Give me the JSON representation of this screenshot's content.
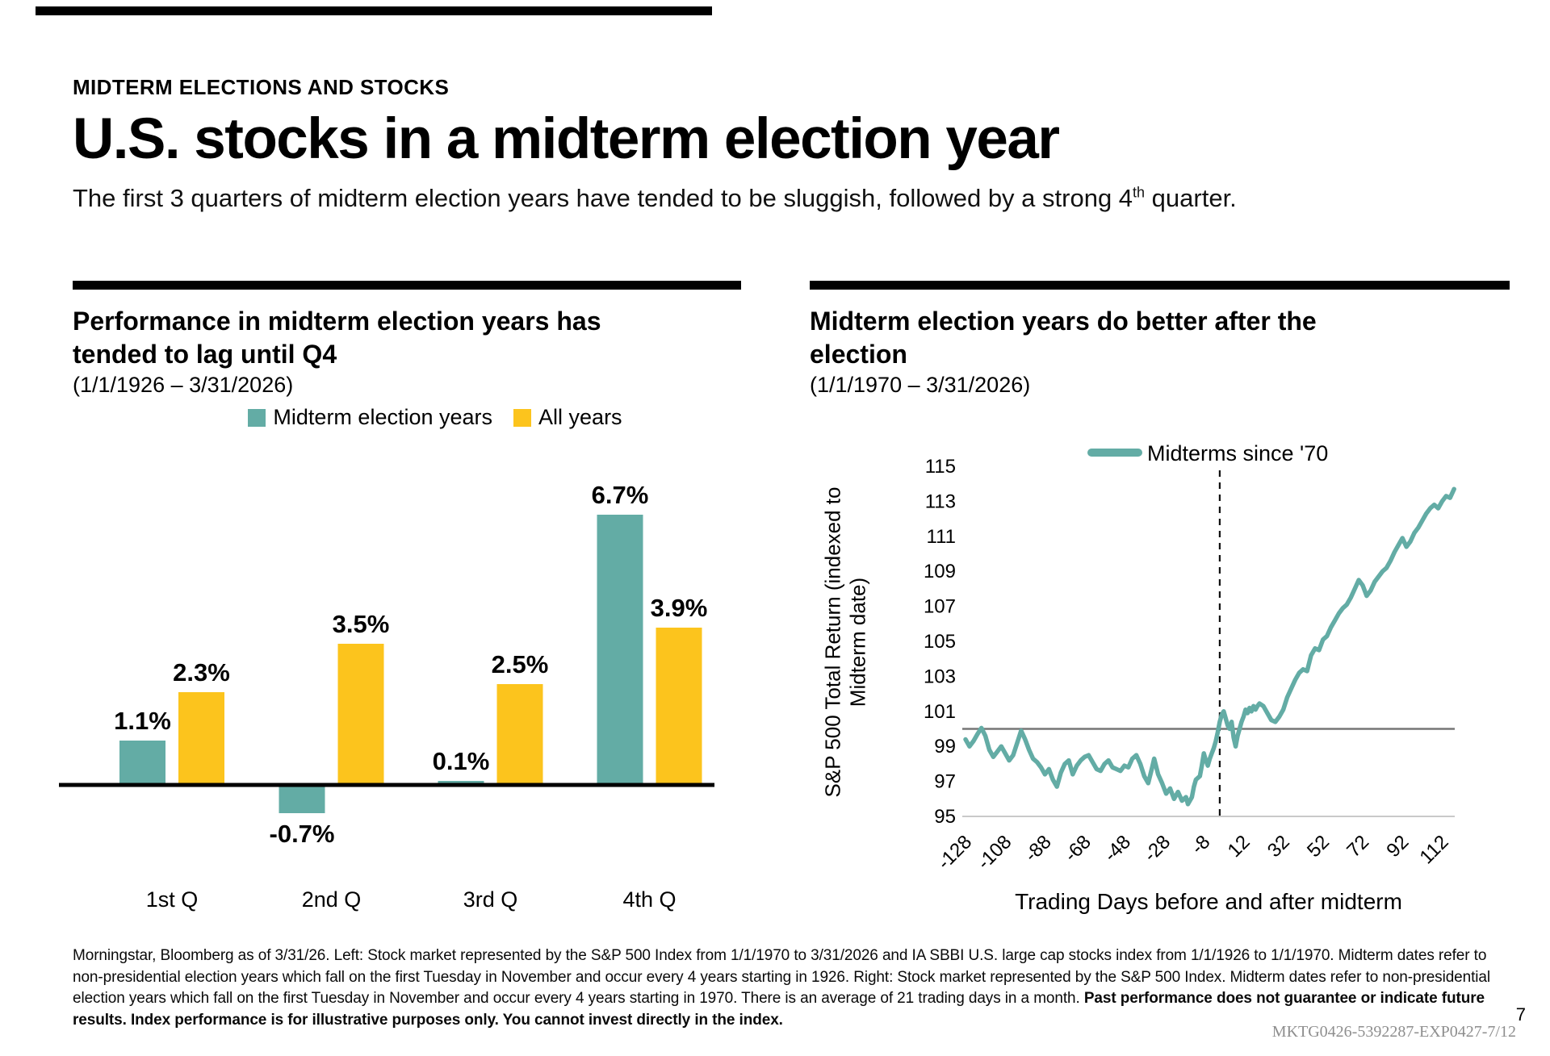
{
  "page": {
    "kicker": "MIDTERM ELECTIONS AND STOCKS",
    "title": "U.S. stocks in a midterm election year",
    "subtitle_before": "The first 3 quarters of midterm election years have tended to be sluggish, followed by a strong 4",
    "subtitle_sup": "th",
    "subtitle_after": " quarter.",
    "page_number": "7",
    "doc_code": "MKTG0426-5392287-EXP0427-7/12"
  },
  "colors": {
    "teal": "#63ACA5",
    "yellow": "#FCC41D",
    "baseline_gray": "#767676",
    "axis_light_gray": "#c9c9c9",
    "black": "#000000"
  },
  "footnote": {
    "regular": "Morningstar, Bloomberg as of 3/31/26.  Left: Stock market represented by the S&P 500 Index from 1/1/1970 to 3/31/2026 and  IA SBBI U.S. large cap stocks index from 1/1/1926 to 1/1/1970. Midterm dates refer to non-presidential election years which fall on the first Tuesday in November and occur every 4 years starting in 1926. Right: Stock market represented by the S&P 500 Index. Midterm dates refer to non-presidential election years which fall on the first Tuesday in November and occur every 4 years starting in  1970. There is an average of 21 trading days in a month. ",
    "bold": "Past performance does not guarantee or indicate future results. Index performance is for illustrative purposes only. You cannot invest directly in the index."
  },
  "chart_data": [
    {
      "type": "bar",
      "title": "Performance in midterm election years has tended to lag until Q4",
      "date_range": "(1/1/1926 – 3/31/2026)",
      "categories": [
        "1st Q",
        "2nd Q",
        "3rd Q",
        "4th Q"
      ],
      "series": [
        {
          "name": "Midterm election years",
          "color_key": "teal",
          "values": [
            1.1,
            -0.7,
            0.1,
            6.7
          ]
        },
        {
          "name": "All years",
          "color_key": "yellow",
          "values": [
            2.3,
            3.5,
            2.5,
            3.9
          ]
        }
      ],
      "value_labels": [
        [
          "1.1%",
          "-0.7%",
          "0.1%",
          "6.7%"
        ],
        [
          "2.3%",
          "3.5%",
          "2.5%",
          "3.9%"
        ]
      ],
      "unit": "%",
      "ylim": [
        -1.5,
        7.5
      ],
      "grid": false,
      "legend_position": "top-center"
    },
    {
      "type": "line",
      "title": "Midterm election years do better after the election",
      "date_range": "(1/1/1970 – 3/31/2026)",
      "legend": "Midterms since '70",
      "ylabel": "S&P 500 Total Return (indexed to\nMidterm date)",
      "xlabel": "Trading Days before and after midterm",
      "ylim": [
        95,
        115
      ],
      "yticks": [
        115,
        113,
        111,
        109,
        107,
        105,
        103,
        101,
        99,
        97,
        95
      ],
      "xticks": [
        -128,
        -108,
        -88,
        -68,
        -48,
        -28,
        -8,
        12,
        32,
        52,
        72,
        92,
        112
      ],
      "baseline_value": 100,
      "midterm_day": 0,
      "grid": false,
      "x": [
        -128,
        -126,
        -124,
        -122,
        -120,
        -118,
        -116,
        -114,
        -112,
        -110,
        -108,
        -106,
        -104,
        -102,
        -100,
        -98,
        -96,
        -94,
        -92,
        -90,
        -88,
        -86,
        -84,
        -82,
        -80,
        -78,
        -76,
        -74,
        -72,
        -70,
        -68,
        -66,
        -64,
        -62,
        -60,
        -58,
        -56,
        -54,
        -52,
        -50,
        -48,
        -46,
        -44,
        -42,
        -40,
        -38,
        -36,
        -34,
        -33,
        -31,
        -29,
        -27,
        -25,
        -23,
        -21,
        -19,
        -17,
        -16,
        -14,
        -13,
        -12,
        -10,
        -9,
        -8,
        -7,
        -6,
        -5,
        -4,
        -3,
        -2,
        -1,
        0,
        1,
        2,
        3,
        4,
        5,
        6,
        7,
        8,
        9,
        10,
        11,
        12,
        13,
        14,
        15,
        16,
        17,
        18,
        19,
        20,
        22,
        24,
        26,
        28,
        30,
        32,
        34,
        36,
        38,
        40,
        42,
        44,
        46,
        48,
        50,
        52,
        54,
        56,
        58,
        60,
        62,
        64,
        66,
        68,
        70,
        72,
        74,
        76,
        78,
        80,
        82,
        84,
        86,
        88,
        90,
        92,
        94,
        96,
        98,
        100,
        102,
        104,
        106,
        108,
        110,
        112,
        114,
        116,
        118
      ],
      "y": [
        99.4,
        99.0,
        99.3,
        99.7,
        100.05,
        99.6,
        98.8,
        98.4,
        98.7,
        99.0,
        98.6,
        98.2,
        98.5,
        99.2,
        99.9,
        99.4,
        98.8,
        98.3,
        98.1,
        97.8,
        97.4,
        97.7,
        97.1,
        96.7,
        97.5,
        98.0,
        98.2,
        97.4,
        97.9,
        98.2,
        98.4,
        98.5,
        98.1,
        97.7,
        97.6,
        98.0,
        98.2,
        97.8,
        97.7,
        97.6,
        97.9,
        97.8,
        98.3,
        98.5,
        98.0,
        97.3,
        96.9,
        97.8,
        98.3,
        97.4,
        96.9,
        96.3,
        96.6,
        96.0,
        96.4,
        95.9,
        96.1,
        95.7,
        96.1,
        96.7,
        97.1,
        97.3,
        97.9,
        98.6,
        98.2,
        97.9,
        98.3,
        98.6,
        98.9,
        99.3,
        99.8,
        100.4,
        100.8,
        101.0,
        100.6,
        100.2,
        100.0,
        100.4,
        99.5,
        99.0,
        99.6,
        100.0,
        100.4,
        100.7,
        101.1,
        100.9,
        101.2,
        101.0,
        101.3,
        101.1,
        101.3,
        101.45,
        101.3,
        100.9,
        100.5,
        100.4,
        100.7,
        101.1,
        101.8,
        102.3,
        102.8,
        103.2,
        103.4,
        103.3,
        104.2,
        104.6,
        104.5,
        105.1,
        105.3,
        105.8,
        106.2,
        106.6,
        106.9,
        107.1,
        107.5,
        108.0,
        108.5,
        108.2,
        107.6,
        107.9,
        108.4,
        108.7,
        109.0,
        109.2,
        109.6,
        110.1,
        110.5,
        110.9,
        110.4,
        110.7,
        111.2,
        111.5,
        111.9,
        112.3,
        112.6,
        112.8,
        112.6,
        113.0,
        113.3,
        113.2,
        113.7
      ]
    }
  ]
}
